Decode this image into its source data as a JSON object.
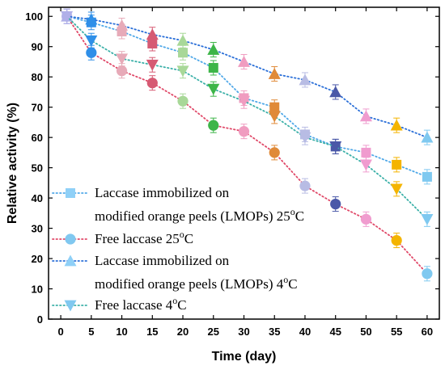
{
  "chart_data": {
    "type": "scatter",
    "xlabel": "Time (day)",
    "ylabel": "Relative activity (%)",
    "xlim": [
      -2,
      62
    ],
    "ylim": [
      0,
      103
    ],
    "xticks": [
      0,
      5,
      10,
      15,
      20,
      25,
      30,
      35,
      40,
      45,
      50,
      55,
      60
    ],
    "yticks": [
      0,
      10,
      20,
      30,
      40,
      50,
      60,
      70,
      80,
      90,
      100
    ],
    "x": [
      1,
      5,
      10,
      15,
      20,
      25,
      30,
      35,
      40,
      45,
      50,
      55,
      60
    ],
    "legend_position": "bottom-left",
    "series": [
      {
        "name": "Laccase immobilized on modified orange peels (LMOPs) 25oC",
        "legend_line1": "Laccase immobilized on",
        "legend_line2_prefix": "modified orange peels (LMOPs) 25",
        "legend_sup": "o",
        "legend_suffix": "C",
        "marker": "square",
        "line_color": "#4fa8e8",
        "legend_color": "#8fd0f7",
        "values": [
          100,
          98,
          95,
          91,
          88,
          83,
          73,
          70,
          61,
          57,
          55,
          51,
          47
        ],
        "colors": [
          "#b0b0e8",
          "#2f8fe8",
          "#e7aab8",
          "#d65a73",
          "#a8d898",
          "#3db548",
          "#f09cc0",
          "#e08a38",
          "#b8bce4",
          "#4a58a8",
          "#f09ccf",
          "#f4b400",
          "#7fc9f0"
        ]
      },
      {
        "name": "Free laccase 25oC",
        "legend_line1": "Free laccase 25",
        "legend_sup": "o",
        "legend_suffix": "C",
        "marker": "circle",
        "line_color": "#e04868",
        "legend_color": "#80c8f0",
        "values": [
          100,
          88,
          82,
          78,
          72,
          64,
          62,
          55,
          44,
          38,
          33,
          26,
          15
        ],
        "colors": [
          "#b0b0e8",
          "#2f8fe8",
          "#e7aab8",
          "#d65a73",
          "#a8d898",
          "#3db548",
          "#f09cc0",
          "#e08a38",
          "#b8bce4",
          "#4a58a8",
          "#f09ccf",
          "#f4b400",
          "#7fc9f0"
        ]
      },
      {
        "name": "Laccase immobilized on modified orange peels (LMOPs) 4oC",
        "legend_line1": "Laccase immobilized on",
        "legend_line2_prefix": "modified orange peels (LMOPs) 4",
        "legend_sup": "o",
        "legend_suffix": "C",
        "marker": "triangle-up",
        "line_color": "#2a6fd8",
        "legend_color": "#8fd0f7",
        "values": [
          100,
          99,
          97,
          94,
          92,
          89,
          85,
          81,
          79,
          75,
          67,
          64,
          60
        ],
        "colors": [
          "#b0b0e8",
          "#2f8fe8",
          "#e7aab8",
          "#d65a73",
          "#a8d898",
          "#3db548",
          "#f09cc0",
          "#e08a38",
          "#b8bce4",
          "#4a58a8",
          "#f09ccf",
          "#f4b400",
          "#7fc9f0"
        ]
      },
      {
        "name": "Free laccase 4oC",
        "legend_line1": "Free laccase 4",
        "legend_sup": "o",
        "legend_suffix": "C",
        "marker": "triangle-down",
        "line_color": "#3bb0a8",
        "legend_color": "#80c8f0",
        "values": [
          100,
          92,
          86,
          84,
          82,
          76,
          72,
          67,
          60,
          57,
          51,
          43,
          33
        ],
        "colors": [
          "#b0b0e8",
          "#2f8fe8",
          "#e7aab8",
          "#d65a73",
          "#a8d898",
          "#3db548",
          "#f09cc0",
          "#e08a38",
          "#b8bce4",
          "#4a58a8",
          "#f09ccf",
          "#f4b400",
          "#7fc9f0"
        ]
      }
    ]
  }
}
